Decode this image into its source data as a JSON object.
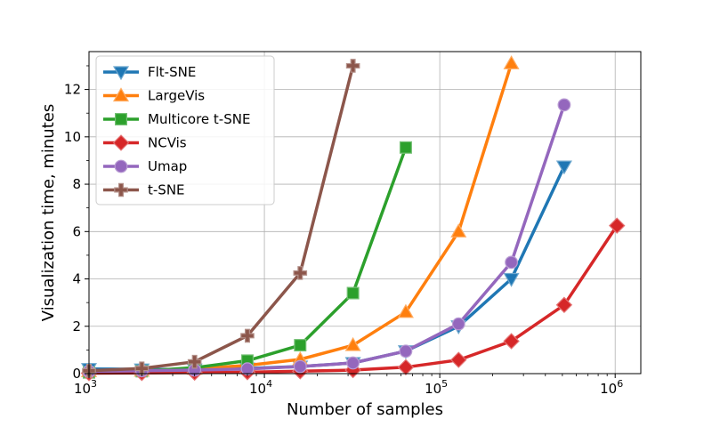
{
  "chart_data": {
    "type": "line",
    "title": "",
    "xlabel": "Number of samples",
    "ylabel": "Visualization time, minutes",
    "xscale": "log",
    "xlim": [
      1000,
      1400000
    ],
    "ylim": [
      0,
      13.6
    ],
    "grid": true,
    "legend_position": "top-left",
    "x_ticks": [
      {
        "value": 1000,
        "base": "10",
        "exp": "3"
      },
      {
        "value": 10000,
        "base": "10",
        "exp": "4"
      },
      {
        "value": 100000,
        "base": "10",
        "exp": "5"
      },
      {
        "value": 1000000,
        "base": "10",
        "exp": "6"
      }
    ],
    "y_ticks": [
      {
        "value": 0,
        "label": "0"
      },
      {
        "value": 2,
        "label": "2"
      },
      {
        "value": 4,
        "label": "4"
      },
      {
        "value": 6,
        "label": "6"
      },
      {
        "value": 8,
        "label": "8"
      },
      {
        "value": 10,
        "label": "10"
      },
      {
        "value": 12,
        "label": "12"
      }
    ],
    "series": [
      {
        "name": "Flt-SNE",
        "color": "#1f77b4",
        "marker": "triangle-down",
        "x": [
          1000,
          2000,
          4000,
          8000,
          16000,
          32000,
          64000,
          128000,
          256000,
          512000
        ],
        "y": [
          0.2,
          0.18,
          0.18,
          0.22,
          0.3,
          0.45,
          0.95,
          2.0,
          4.0,
          8.75
        ]
      },
      {
        "name": "LargeVis",
        "color": "#ff7f0e",
        "marker": "triangle-up",
        "x": [
          1000,
          2000,
          4000,
          8000,
          16000,
          32000,
          64000,
          128000,
          256000
        ],
        "y": [
          0.1,
          0.12,
          0.2,
          0.35,
          0.6,
          1.2,
          2.6,
          6.0,
          13.1
        ]
      },
      {
        "name": "Multicore t-SNE",
        "color": "#2ca02c",
        "marker": "square",
        "x": [
          1000,
          2000,
          4000,
          8000,
          16000,
          32000,
          64000
        ],
        "y": [
          0.05,
          0.1,
          0.25,
          0.55,
          1.2,
          3.4,
          9.55
        ]
      },
      {
        "name": "NCVis",
        "color": "#d62728",
        "marker": "diamond",
        "x": [
          1000,
          2000,
          4000,
          8000,
          16000,
          32000,
          64000,
          128000,
          256000,
          512000,
          1024000
        ],
        "y": [
          0.02,
          0.03,
          0.04,
          0.06,
          0.1,
          0.15,
          0.27,
          0.58,
          1.37,
          2.9,
          6.25
        ]
      },
      {
        "name": "Umap",
        "color": "#9467bd",
        "marker": "circle",
        "x": [
          1000,
          2000,
          4000,
          8000,
          16000,
          32000,
          64000,
          128000,
          256000,
          512000
        ],
        "y": [
          0.1,
          0.12,
          0.15,
          0.2,
          0.3,
          0.45,
          0.95,
          2.1,
          4.7,
          11.35
        ]
      },
      {
        "name": "t-SNE",
        "color": "#8c564b",
        "marker": "plus",
        "x": [
          1000,
          2000,
          4000,
          8000,
          16000,
          32000
        ],
        "y": [
          0.12,
          0.22,
          0.5,
          1.6,
          4.25,
          13.0
        ]
      }
    ]
  }
}
